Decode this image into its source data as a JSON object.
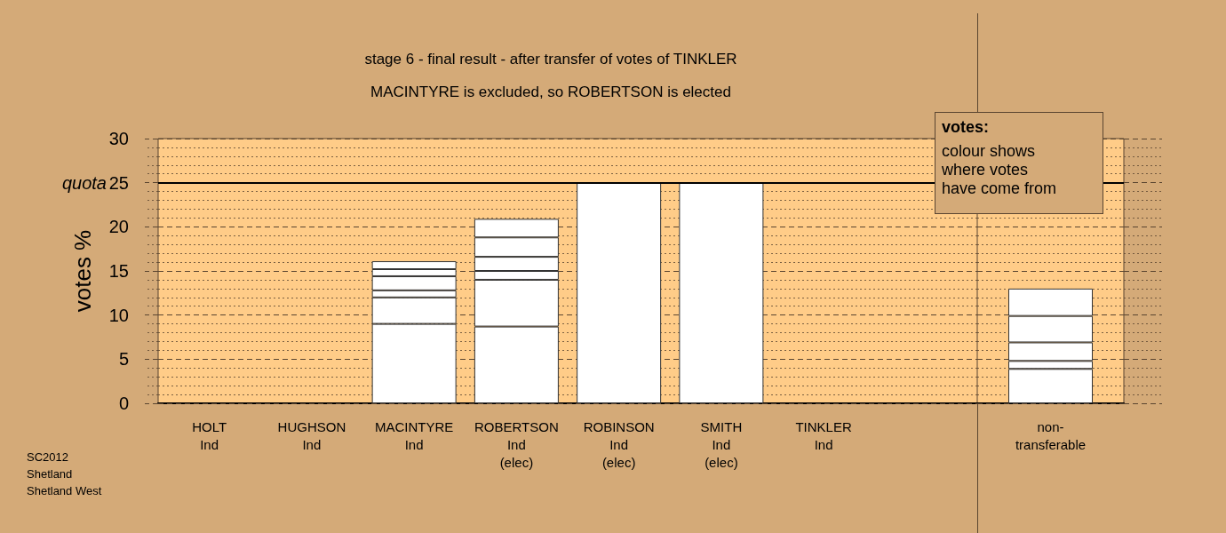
{
  "chart_data": [
    {
      "type": "bar",
      "title": "stage 6 - final result - after transfer of votes of TINKLER",
      "subtitle": "MACINTYRE is excluded, so ROBERTSON is elected",
      "ylabel": "votes %",
      "categories": [
        "HOLT\nInd",
        "HUGHSON\nInd",
        "MACINTYRE\nInd",
        "ROBERTSON\nInd\n(elec)",
        "ROBINSON\nInd\n(elec)",
        "SMITH\nInd\n(elec)",
        "TINKLER\nInd",
        null
      ],
      "series": [
        {
          "color": "#ffffff",
          "values": [
            0,
            0,
            9.0,
            8.7,
            25,
            25,
            0,
            null
          ]
        },
        {
          "color": "#ffffff",
          "values": [
            null,
            null,
            3.0,
            5.3,
            null,
            null,
            null,
            null
          ]
        },
        {
          "color": "#ffffff",
          "values": [
            null,
            null,
            0.8,
            1.0,
            null,
            null,
            null,
            null
          ]
        },
        {
          "color": "#ffffff",
          "values": [
            null,
            null,
            1.6,
            1.6,
            null,
            null,
            null,
            null
          ]
        },
        {
          "color": "#ffffff",
          "values": [
            null,
            null,
            0.8,
            2.2,
            null,
            null,
            null,
            null
          ]
        },
        {
          "color": "#ffffff",
          "values": [
            null,
            null,
            0.9,
            2.1,
            null,
            null,
            null,
            null
          ]
        }
      ],
      "stacked": true,
      "ylim": [
        0,
        30
      ],
      "yticks": [
        0,
        {
          "value": 1,
          "label": null
        },
        {
          "value": 2,
          "label": null
        },
        {
          "value": 3,
          "label": null
        },
        {
          "value": 4,
          "label": null
        },
        5,
        {
          "value": 6,
          "label": null
        },
        {
          "value": 7,
          "label": null
        },
        {
          "value": 8,
          "label": null
        },
        {
          "value": 9,
          "label": null
        },
        10,
        {
          "value": 11,
          "label": null
        },
        {
          "value": 12,
          "label": null
        },
        {
          "value": 13,
          "label": null
        },
        {
          "value": 14,
          "label": null
        },
        15,
        {
          "value": 16,
          "label": null
        },
        {
          "value": 17,
          "label": null
        },
        {
          "value": 18,
          "label": null
        },
        {
          "value": 19,
          "label": null
        },
        20,
        {
          "value": 21,
          "label": null
        },
        {
          "value": 22,
          "label": null
        },
        {
          "value": 23,
          "label": null
        },
        {
          "value": 24,
          "label": null
        },
        25,
        {
          "value": 26,
          "label": null
        },
        {
          "value": 27,
          "label": null
        },
        {
          "value": 28,
          "label": null
        },
        {
          "value": 29,
          "label": null
        },
        30
      ],
      "grid": "y",
      "ref_lines": [
        {
          "axis": "y",
          "value": 25,
          "label": "quota"
        }
      ],
      "annotations": [
        "votes:",
        "colour shows\nwhere votes\nhave come from",
        "SC2012\nShetland\nShetland West"
      ]
    },
    {
      "type": "bar",
      "categories": [
        "non-\ntransferable"
      ],
      "series": [
        {
          "color": "#ffffff",
          "values": [
            3.9
          ]
        },
        {
          "color": "#ffffff",
          "values": [
            0.9
          ]
        },
        {
          "color": "#ffffff",
          "values": [
            2.1
          ]
        },
        {
          "color": "#ffffff",
          "values": [
            3.0
          ]
        },
        {
          "color": "#ffffff",
          "values": [
            3.1
          ]
        }
      ],
      "stacked": true,
      "ylim": [
        0,
        30
      ],
      "yticks": [
        0,
        {
          "value": 1,
          "label": null
        },
        {
          "value": 2,
          "label": null
        },
        {
          "value": 3,
          "label": null
        },
        {
          "value": 4,
          "label": null
        },
        5,
        {
          "value": 6,
          "label": null
        },
        {
          "value": 7,
          "label": null
        },
        {
          "value": 8,
          "label": null
        },
        {
          "value": 9,
          "label": null
        },
        10,
        {
          "value": 11,
          "label": null
        },
        {
          "value": 12,
          "label": null
        },
        {
          "value": 13,
          "label": null
        },
        {
          "value": 14,
          "label": null
        },
        15,
        {
          "value": 16,
          "label": null
        },
        {
          "value": 17,
          "label": null
        },
        {
          "value": 18,
          "label": null
        },
        {
          "value": 19,
          "label": null
        },
        20,
        {
          "value": 21,
          "label": null
        },
        {
          "value": 22,
          "label": null
        },
        {
          "value": 23,
          "label": null
        },
        {
          "value": 24,
          "label": null
        },
        25,
        {
          "value": 26,
          "label": null
        },
        {
          "value": 27,
          "label": null
        },
        {
          "value": 28,
          "label": null
        },
        {
          "value": 29,
          "label": null
        },
        30
      ],
      "grid": "y",
      "tick_labels": "x",
      "ref_lines": [
        {
          "axis": "y",
          "value": 25
        }
      ]
    }
  ]
}
